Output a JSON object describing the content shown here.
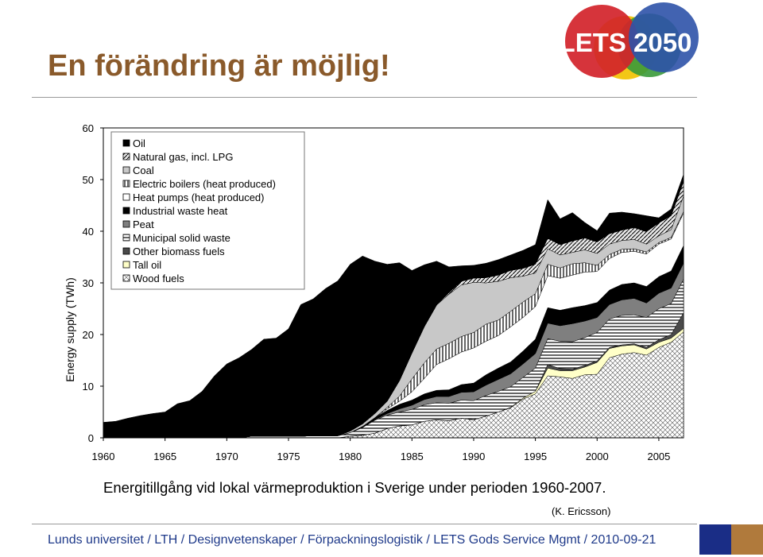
{
  "slide": {
    "title": "En förändring är möjlig!",
    "caption": "Energitillgång vid lokal värmeproduktion i Sverige under perioden 1960-2007.",
    "credit": "(K. Ericsson)",
    "footer": "Lunds universitet / LTH / Designvetenskaper / Förpackningslogistik / LETS Gods Service Mgmt / 2010-09-21",
    "logo_text": "LETS 2050"
  },
  "colors": {
    "title": "#8a5a2b",
    "footer_text": "#1f3a8a",
    "footer_blue": "#1a2d86",
    "footer_brown": "#b07a3c",
    "logo_red": "#d2232a",
    "logo_yellow": "#f2c40a",
    "logo_blue": "#2e52a8",
    "logo_green": "#3a9a3a"
  },
  "chart_data": {
    "type": "area",
    "stacked": true,
    "ylabel": "Energy supply (TWh)",
    "xlabel": "",
    "ylim": [
      0,
      60
    ],
    "yticks": [
      0,
      10,
      20,
      30,
      40,
      50,
      60
    ],
    "xticks": [
      1960,
      1965,
      1970,
      1975,
      1980,
      1985,
      1990,
      1995,
      2000,
      2005
    ],
    "legend_position": "top-left",
    "grid": false,
    "x": [
      1960,
      1961,
      1962,
      1963,
      1964,
      1965,
      1966,
      1967,
      1968,
      1969,
      1970,
      1971,
      1972,
      1973,
      1974,
      1975,
      1976,
      1977,
      1978,
      1979,
      1980,
      1981,
      1982,
      1983,
      1984,
      1985,
      1986,
      1987,
      1988,
      1989,
      1990,
      1991,
      1992,
      1993,
      1994,
      1995,
      1996,
      1997,
      1998,
      1999,
      2000,
      2001,
      2002,
      2003,
      2004,
      2005,
      2006,
      2007
    ],
    "series": [
      {
        "name": "Wood fuels",
        "pattern": "crosshatch",
        "values": [
          0,
          0,
          0,
          0,
          0,
          0,
          0,
          0,
          0,
          0,
          0,
          0,
          0,
          0,
          0,
          0,
          0,
          0,
          0,
          0,
          0.3,
          0.5,
          0.9,
          1.8,
          2.3,
          2.5,
          3.2,
          3.5,
          3.3,
          3.8,
          3.5,
          4.2,
          5,
          5.8,
          7.5,
          8.5,
          12,
          11.8,
          11.5,
          12.2,
          12.3,
          15.5,
          16.2,
          16.5,
          16,
          17.5,
          18.5,
          20.5
        ]
      },
      {
        "name": "Tall oil",
        "pattern": "cream",
        "values": [
          0,
          0,
          0,
          0,
          0,
          0,
          0,
          0,
          0,
          0,
          0,
          0,
          0,
          0,
          0,
          0,
          0,
          0,
          0,
          0,
          0,
          0,
          0,
          0,
          0,
          0,
          0,
          0,
          0,
          0,
          0,
          0,
          0,
          0.1,
          0.2,
          0.5,
          1.5,
          1.2,
          1.5,
          1.5,
          2.3,
          1.8,
          1.6,
          1.5,
          1.2,
          1,
          0.8,
          0.7
        ]
      },
      {
        "name": "Other biomass fuels",
        "pattern": "darkgray",
        "values": [
          0,
          0,
          0,
          0,
          0,
          0,
          0,
          0,
          0,
          0,
          0,
          0,
          0,
          0,
          0,
          0,
          0,
          0,
          0,
          0,
          0,
          0,
          0,
          0,
          0,
          0,
          0,
          0,
          0,
          0,
          0,
          0,
          0,
          0,
          0,
          0,
          0.7,
          0.4,
          0.3,
          0.3,
          0.3,
          0.2,
          0.2,
          0.2,
          0.3,
          0.5,
          0.7,
          3
        ]
      },
      {
        "name": "Municipal solid waste",
        "pattern": "hlines",
        "values": [
          0,
          0,
          0,
          0,
          0,
          0,
          0,
          0,
          0,
          0,
          0,
          0,
          0.3,
          0.3,
          0.3,
          0.3,
          0.3,
          0.4,
          0.4,
          0.4,
          0.7,
          1.5,
          2.5,
          2.6,
          2.7,
          3,
          3.2,
          3.3,
          3.4,
          3.5,
          3.7,
          4,
          4,
          4,
          4,
          4.5,
          5,
          5.3,
          5.3,
          5.4,
          5.5,
          5.5,
          5.7,
          5.6,
          5.8,
          6,
          6,
          6.5
        ]
      },
      {
        "name": "Peat",
        "pattern": "gray",
        "values": [
          0,
          0,
          0,
          0,
          0,
          0,
          0,
          0,
          0,
          0,
          0,
          0,
          0,
          0,
          0,
          0,
          0,
          0,
          0,
          0,
          0,
          0,
          0.1,
          0.3,
          0.6,
          0.8,
          1,
          1.2,
          1.3,
          1.5,
          1.7,
          2,
          2.3,
          2.5,
          2.6,
          2.8,
          3,
          3,
          3.5,
          3.2,
          2.9,
          2.8,
          3,
          3.2,
          2.8,
          3,
          3,
          3.1
        ]
      },
      {
        "name": "Industrial waste heat",
        "pattern": "black",
        "values": [
          0,
          0,
          0,
          0,
          0,
          0,
          0,
          0,
          0,
          0,
          0,
          0,
          0,
          0,
          0,
          0,
          0,
          0,
          0,
          0,
          0,
          0.2,
          0.4,
          0.6,
          0.9,
          1,
          1.1,
          1.2,
          1.3,
          1.5,
          1.7,
          2,
          2.2,
          2.3,
          2.5,
          2.8,
          3,
          3,
          3.1,
          3,
          2.9,
          2.8,
          3,
          3,
          3.2,
          3.2,
          3.3,
          3.4
        ]
      },
      {
        "name": "Heat pumps (heat produced)",
        "pattern": "white",
        "values": [
          0,
          0,
          0,
          0,
          0,
          0,
          0,
          0,
          0,
          0,
          0,
          0,
          0,
          0,
          0,
          0,
          0,
          0,
          0,
          0,
          0,
          0,
          0,
          0.3,
          0.6,
          1.6,
          3,
          5,
          6,
          6.3,
          6.8,
          6.5,
          6.3,
          6.8,
          6.5,
          6.3,
          6.2,
          6.2,
          6.3,
          6.5,
          6,
          6.1,
          6.2,
          6.1,
          6.3,
          6.3,
          6.2,
          6.3
        ]
      },
      {
        "name": "Electric boilers (heat produced)",
        "pattern": "vlines",
        "values": [
          0,
          0,
          0,
          0,
          0,
          0,
          0,
          0,
          0,
          0,
          0,
          0,
          0,
          0,
          0,
          0,
          0,
          0,
          0,
          0,
          0,
          0,
          0,
          0.3,
          1,
          2.5,
          3,
          3,
          3,
          3,
          3,
          3.3,
          3,
          3,
          3,
          2.5,
          2.2,
          2,
          2.2,
          1.8,
          1.2,
          0.8,
          0.6,
          0.5,
          0.4,
          0.3,
          0.3,
          0.3
        ]
      },
      {
        "name": "Coal",
        "pattern": "lightgray",
        "values": [
          0,
          0,
          0,
          0,
          0,
          0,
          0,
          0,
          0,
          0,
          0,
          0,
          0,
          0,
          0,
          0,
          0,
          0,
          0,
          0,
          0.3,
          0.5,
          0.8,
          1.2,
          3,
          5,
          7,
          8.5,
          9.5,
          10,
          9.7,
          8,
          7.5,
          6.5,
          5,
          4,
          3,
          2.5,
          2.2,
          2.5,
          2.3,
          2,
          1.7,
          1.8,
          1.5,
          1.3,
          1.5,
          3
        ]
      },
      {
        "name": "Natural gas, incl. LPG",
        "pattern": "diag",
        "values": [
          0,
          0,
          0,
          0,
          0,
          0,
          0,
          0,
          0,
          0,
          0,
          0,
          0,
          0,
          0,
          0,
          0,
          0,
          0,
          0,
          0,
          0,
          0,
          0,
          0,
          0,
          0,
          0,
          0.3,
          0.7,
          0.8,
          1,
          1.2,
          1.4,
          1.5,
          1.7,
          2,
          2,
          2.2,
          2.3,
          2.2,
          2,
          2,
          2.3,
          2.4,
          2.5,
          2.7,
          2.8
        ]
      },
      {
        "name": "Oil",
        "pattern": "black",
        "values": [
          3,
          3.2,
          3.8,
          4.3,
          4.7,
          5,
          6.6,
          7.2,
          9,
          12,
          14.3,
          15.5,
          16.8,
          18.8,
          19,
          20.8,
          25.5,
          26.5,
          28.5,
          30,
          32.3,
          32.5,
          29.5,
          26.5,
          22.8,
          16,
          12,
          8.5,
          5,
          3,
          2.5,
          2.8,
          3,
          3,
          3.5,
          3.8,
          7.5,
          5,
          5.5,
          3,
          2.2,
          4,
          3.5,
          2.7,
          3.1,
          1,
          1.3,
          1.4
        ]
      }
    ]
  }
}
